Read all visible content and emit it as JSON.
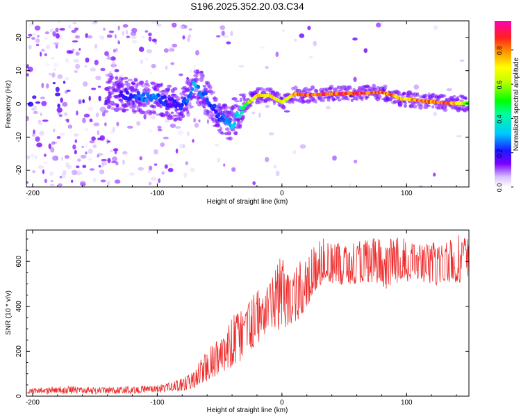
{
  "title": "S196.2025.352.20.03.C34",
  "chart_data": [
    {
      "type": "heatmap",
      "name": "spectrogram",
      "xlabel": "Height of straight line (km)",
      "ylabel": "Frequency (Hz)",
      "xlim": [
        -205,
        150
      ],
      "ylim": [
        -25,
        25
      ],
      "xticks": [
        -200,
        -100,
        0,
        100
      ],
      "yticks": [
        -20,
        -10,
        0,
        10,
        20
      ],
      "colorbar": {
        "label": "Normalized spectral amplitude",
        "range": [
          0.0,
          0.97
        ],
        "ticks": [
          0.0,
          0.2,
          0.4,
          0.6,
          0.8
        ]
      },
      "ridge": {
        "x": [
          -130,
          -120,
          -110,
          -100,
          -90,
          -80,
          -70,
          -60,
          -50,
          -45,
          -40,
          -35,
          -30,
          -20,
          -10,
          0,
          10,
          20,
          40,
          60,
          80,
          90,
          95,
          100,
          110,
          120,
          130,
          140,
          150
        ],
        "y": [
          3,
          2.5,
          2,
          1.5,
          0.5,
          -1,
          6,
          2,
          -4,
          -5,
          -6,
          -3,
          -0.5,
          2.5,
          2.5,
          0.5,
          3,
          2.7,
          3,
          3.2,
          3.5,
          2.5,
          1.5,
          1.5,
          1,
          0.7,
          0.3,
          0.2,
          0.2
        ],
        "amplitude": [
          0.2,
          0.25,
          0.3,
          0.3,
          0.2,
          0.25,
          0.35,
          0.25,
          0.25,
          0.3,
          0.35,
          0.4,
          0.55,
          0.8,
          0.85,
          0.75,
          0.85,
          0.95,
          0.97,
          0.96,
          0.95,
          0.9,
          0.85,
          0.85,
          0.92,
          0.9,
          0.95,
          0.85,
          0.6
        ]
      }
    },
    {
      "type": "line",
      "name": "snr",
      "xlabel": "Height of straight line (km)",
      "ylabel": "SNR (10 * v/v)",
      "xlim": [
        -205,
        150
      ],
      "ylim": [
        0,
        740
      ],
      "xticks": [
        -200,
        -100,
        0,
        100
      ],
      "yticks": [
        0,
        200,
        400,
        600
      ],
      "series": [
        {
          "name": "SNR",
          "color": "#ee2b2b",
          "x": [
            -205,
            -180,
            -150,
            -120,
            -100,
            -90,
            -80,
            -70,
            -60,
            -50,
            -40,
            -30,
            -20,
            -10,
            0,
            10,
            20,
            25,
            30,
            40,
            50,
            60,
            70,
            80,
            82,
            85,
            90,
            100,
            110,
            120,
            130,
            140,
            150
          ],
          "low": [
            10,
            10,
            10,
            12,
            15,
            20,
            25,
            35,
            60,
            100,
            130,
            170,
            230,
            280,
            300,
            320,
            380,
            450,
            480,
            500,
            490,
            500,
            510,
            500,
            430,
            470,
            500,
            510,
            500,
            490,
            500,
            500,
            500
          ],
          "high": [
            35,
            45,
            40,
            45,
            50,
            60,
            80,
            130,
            200,
            290,
            360,
            420,
            470,
            520,
            650,
            600,
            620,
            690,
            700,
            710,
            690,
            700,
            710,
            700,
            690,
            700,
            710,
            700,
            680,
            690,
            700,
            720,
            720
          ],
          "peak_labels": []
        }
      ]
    }
  ]
}
